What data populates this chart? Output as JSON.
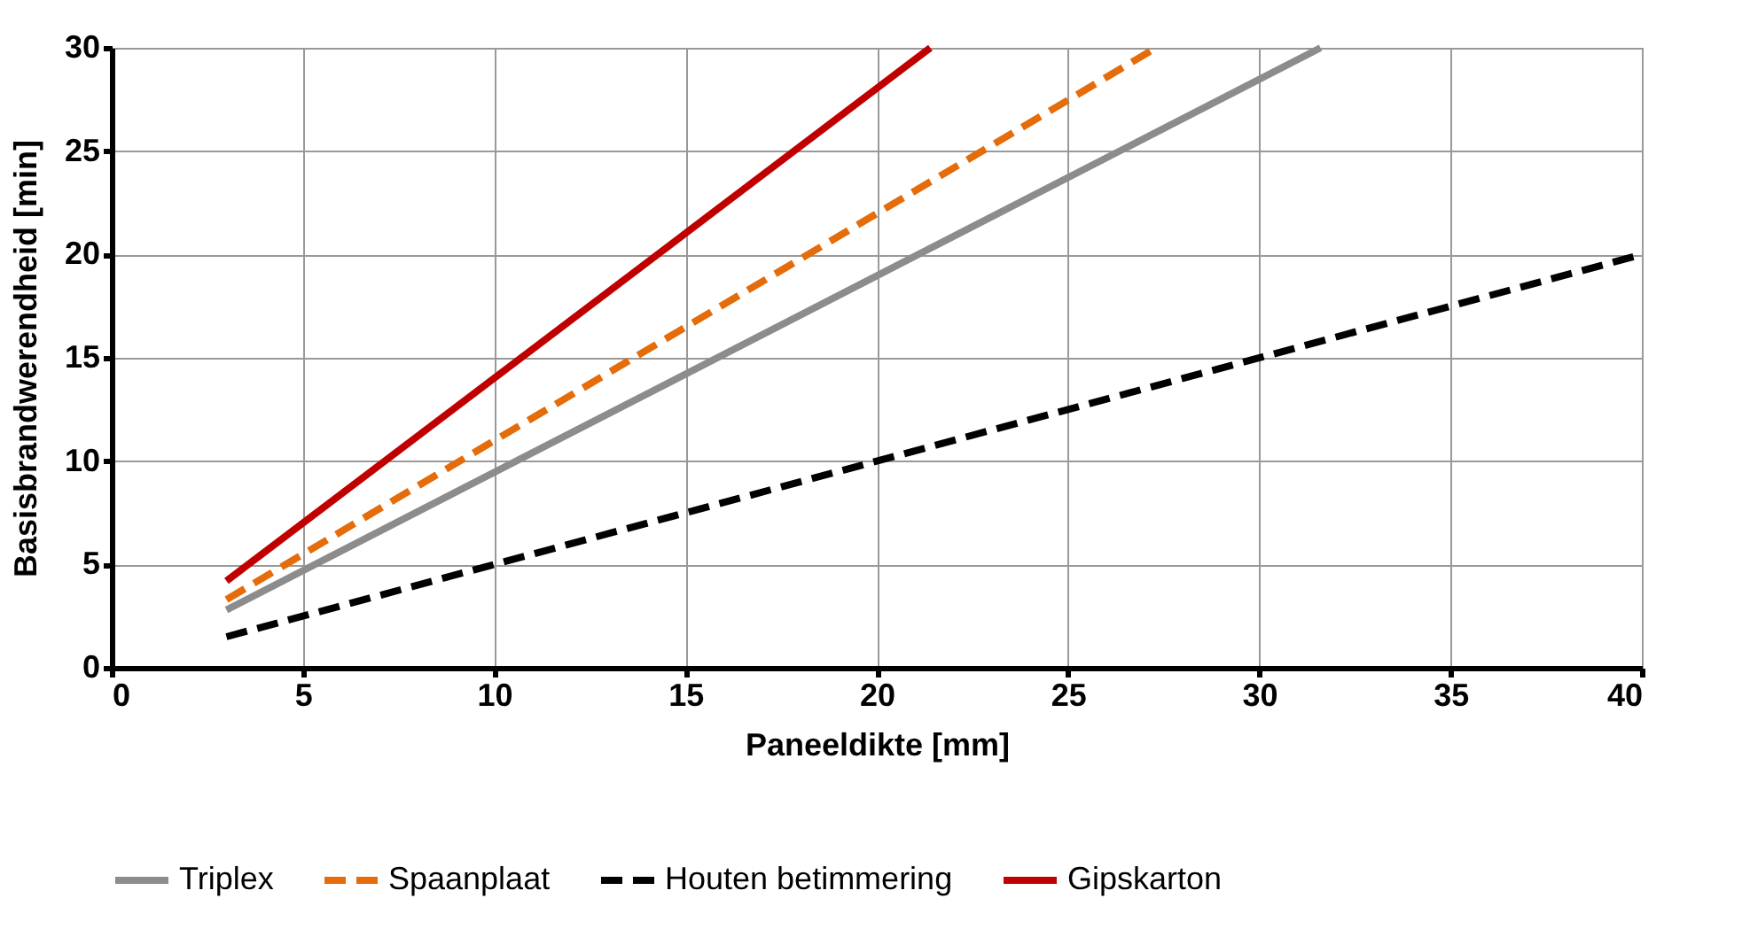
{
  "chart_data": {
    "type": "line",
    "xlabel": "Paneeldikte [mm]",
    "ylabel": "Basisbrandwerendheid [min]",
    "xlim": [
      0,
      40
    ],
    "xticks": [
      0,
      5,
      10,
      15,
      20,
      25,
      30,
      35,
      40
    ],
    "ylim": [
      0,
      30
    ],
    "yticks": [
      0,
      5,
      10,
      15,
      20,
      25,
      30
    ],
    "grid": true,
    "legend": "bottom",
    "marker": "none",
    "series": [
      {
        "name": "Triplex",
        "color": "#8c8c8c",
        "x": [
          3,
          31.6
        ],
        "values": [
          2.8,
          30
        ],
        "line_style": "solid"
      },
      {
        "name": "Spaanplaat",
        "color": "#e46c0a",
        "x": [
          3,
          27.3
        ],
        "values": [
          3.3,
          30
        ],
        "line_style": "dashed"
      },
      {
        "name": "Houten betimmering",
        "color": "#000000",
        "x": [
          3,
          40
        ],
        "values": [
          1.5,
          20
        ],
        "line_style": "dashed"
      },
      {
        "name": "Gipskarton",
        "color": "#c00000",
        "x": [
          3,
          21.4
        ],
        "values": [
          4.2,
          30
        ],
        "line_style": "solid"
      }
    ]
  }
}
